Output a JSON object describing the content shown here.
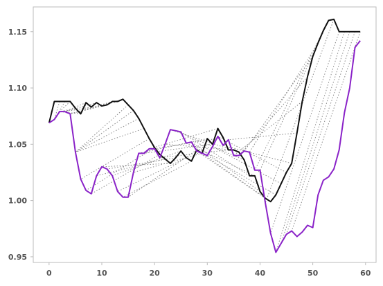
{
  "chart_data": {
    "type": "line",
    "title": "",
    "xlabel": "",
    "ylabel": "",
    "xlim": [
      -3,
      62
    ],
    "ylim": [
      0.945,
      1.172
    ],
    "x_ticks": [
      0,
      10,
      20,
      30,
      40,
      50,
      60
    ],
    "y_ticks": [
      0.95,
      1.0,
      1.05,
      1.1,
      1.15
    ],
    "x_tick_labels": [
      "0",
      "10",
      "20",
      "30",
      "40",
      "50",
      "60"
    ],
    "y_tick_labels": [
      "0.95",
      "1.00",
      "1.05",
      "1.10",
      "1.15"
    ],
    "grid": false,
    "x": [
      0,
      1,
      2,
      3,
      4,
      5,
      6,
      7,
      8,
      9,
      10,
      11,
      12,
      13,
      14,
      15,
      16,
      17,
      18,
      19,
      20,
      21,
      22,
      23,
      24,
      25,
      26,
      27,
      28,
      29,
      30,
      31,
      32,
      33,
      34,
      35,
      36,
      37,
      38,
      39,
      40,
      41,
      42,
      43,
      44,
      45,
      46,
      47,
      48,
      49,
      50,
      51,
      52,
      53,
      54,
      55,
      56,
      57,
      58,
      59
    ],
    "series": [
      {
        "color": "#111111",
        "values": [
          1.069,
          1.088,
          1.088,
          1.088,
          1.088,
          1.082,
          1.077,
          1.087,
          1.083,
          1.087,
          1.084,
          1.085,
          1.088,
          1.088,
          1.09,
          1.085,
          1.08,
          1.073,
          1.064,
          1.055,
          1.047,
          1.041,
          1.037,
          1.033,
          1.038,
          1.044,
          1.038,
          1.035,
          1.045,
          1.042,
          1.055,
          1.05,
          1.064,
          1.056,
          1.045,
          1.045,
          1.043,
          1.036,
          1.022,
          1.022,
          1.008,
          1.002,
          0.999,
          1.005,
          1.015,
          1.025,
          1.033,
          1.06,
          1.088,
          1.11,
          1.128,
          1.14,
          1.151,
          1.16,
          1.161,
          1.15,
          1.15,
          1.15,
          1.15,
          1.15
        ]
      },
      {
        "color": "#8a22c8",
        "values": [
          1.069,
          1.072,
          1.079,
          1.079,
          1.077,
          1.043,
          1.019,
          1.009,
          1.006,
          1.022,
          1.03,
          1.028,
          1.022,
          1.008,
          1.003,
          1.003,
          1.025,
          1.042,
          1.042,
          1.046,
          1.046,
          1.038,
          1.05,
          1.063,
          1.062,
          1.061,
          1.051,
          1.052,
          1.044,
          1.042,
          1.04,
          1.048,
          1.057,
          1.049,
          1.054,
          1.04,
          1.04,
          1.044,
          1.043,
          1.027,
          1.027,
          0.998,
          0.971,
          0.954,
          0.962,
          0.97,
          0.973,
          0.968,
          0.972,
          0.978,
          0.976,
          1.005,
          1.018,
          1.021,
          1.028,
          1.045,
          1.078,
          1.1,
          1.136,
          1.142
        ]
      }
    ],
    "connections": [
      [
        0,
        0
      ],
      [
        1,
        0
      ],
      [
        2,
        1
      ],
      [
        3,
        1
      ],
      [
        4,
        2
      ],
      [
        5,
        2
      ],
      [
        6,
        2
      ],
      [
        7,
        3
      ],
      [
        8,
        3
      ],
      [
        9,
        3
      ],
      [
        10,
        4
      ],
      [
        11,
        4
      ],
      [
        12,
        4
      ],
      [
        13,
        4
      ],
      [
        14,
        4
      ],
      [
        15,
        5
      ],
      [
        16,
        5
      ],
      [
        17,
        5
      ],
      [
        18,
        5
      ],
      [
        19,
        6
      ],
      [
        20,
        7
      ],
      [
        21,
        8
      ],
      [
        22,
        9
      ],
      [
        23,
        10
      ],
      [
        24,
        11
      ],
      [
        25,
        12
      ],
      [
        26,
        13
      ],
      [
        27,
        14
      ],
      [
        28,
        15
      ],
      [
        29,
        16
      ],
      [
        30,
        17
      ],
      [
        31,
        18
      ],
      [
        32,
        19
      ],
      [
        33,
        20
      ],
      [
        34,
        21
      ],
      [
        35,
        22
      ],
      [
        36,
        23
      ],
      [
        37,
        24
      ],
      [
        38,
        25
      ],
      [
        39,
        26
      ],
      [
        40,
        27
      ],
      [
        41,
        28
      ],
      [
        42,
        29
      ],
      [
        43,
        30
      ],
      [
        44,
        31
      ],
      [
        45,
        32
      ],
      [
        46,
        33
      ],
      [
        47,
        34
      ],
      [
        48,
        35
      ],
      [
        49,
        36
      ],
      [
        50,
        37
      ],
      [
        51,
        38
      ],
      [
        52,
        39
      ],
      [
        53,
        40
      ],
      [
        54,
        41
      ],
      [
        55,
        42
      ],
      [
        56,
        43
      ],
      [
        57,
        44
      ],
      [
        58,
        45
      ],
      [
        59,
        46
      ]
    ]
  }
}
